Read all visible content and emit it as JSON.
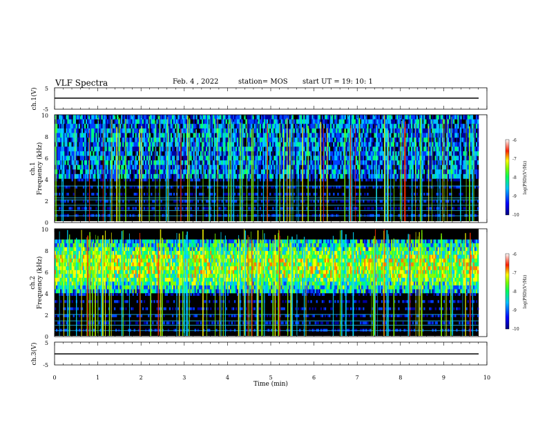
{
  "header": {
    "title": "VLF Spectra",
    "date": "Feb. 4 , 2022",
    "station": "station= MOS",
    "start": "start  UT =   19: 10: 1"
  },
  "chart_data": [
    {
      "type": "line",
      "panel": "ch1-waveform",
      "ylabel": "ch.1(V)",
      "ylim": [
        -5,
        5
      ],
      "yticks": [
        "5",
        "-5"
      ],
      "xlim": [
        0,
        10
      ],
      "series": [
        {
          "values": [
            -1,
            -1
          ]
        }
      ],
      "color": "#000000"
    },
    {
      "type": "heatmap",
      "panel": "ch1-spectrogram",
      "ylabel": "ch.1\nFrequency (kHz)",
      "ylabel_line1": "ch.1",
      "ylabel_line2": "Frequency (kHz)",
      "ylim": [
        0,
        10
      ],
      "yticks": [
        "0",
        "2",
        "4",
        "6",
        "8",
        "10"
      ],
      "xlim": [
        0,
        9.8
      ],
      "colorbar": {
        "label": "log(PSD)(V²/Hz)",
        "range": [
          -10,
          -6
        ],
        "ticks": [
          "-6",
          "-7",
          "-8",
          "-9",
          "-10"
        ]
      },
      "band_khz": [
        4,
        10
      ],
      "horizontal_lines_khz": [
        0.5,
        1.0,
        1.5,
        2.0,
        2.2,
        3.3
      ]
    },
    {
      "type": "heatmap",
      "panel": "ch2-spectrogram",
      "ylabel_line1": "ch.2",
      "ylabel_line2": "Frequency (kHz)",
      "ylim": [
        0,
        10
      ],
      "yticks": [
        "0",
        "2",
        "4",
        "6",
        "8",
        "10"
      ],
      "xlim": [
        0,
        9.8
      ],
      "colorbar": {
        "label": "log(PSD)(V²/Hz)",
        "range": [
          -10,
          -6
        ],
        "ticks": [
          "-6",
          "-7",
          "-8",
          "-9",
          "-10"
        ]
      },
      "band_khz": [
        4,
        9
      ],
      "horizontal_lines_khz": [
        0.5,
        1.0,
        1.4,
        2.0
      ]
    },
    {
      "type": "line",
      "panel": "ch3-waveform",
      "ylabel": "ch.3(V)",
      "ylim": [
        -5,
        5
      ],
      "yticks": [
        "5",
        "-5"
      ],
      "xlim": [
        0,
        10
      ],
      "series": [
        {
          "values": [
            -1,
            -1
          ]
        }
      ],
      "xlabel": "Time  (min)",
      "xticks": [
        "0",
        "1",
        "2",
        "3",
        "4",
        "5",
        "6",
        "7",
        "8",
        "9",
        "10"
      ],
      "color": "#000000"
    }
  ],
  "colors": {
    "background": "#ffffff",
    "spectrogram_background": "#000000",
    "colormap": [
      "#000000",
      "#0000a0",
      "#0040ff",
      "#00c0ff",
      "#00ff80",
      "#80ff00",
      "#ffff00",
      "#ff8000",
      "#ff0000"
    ]
  }
}
